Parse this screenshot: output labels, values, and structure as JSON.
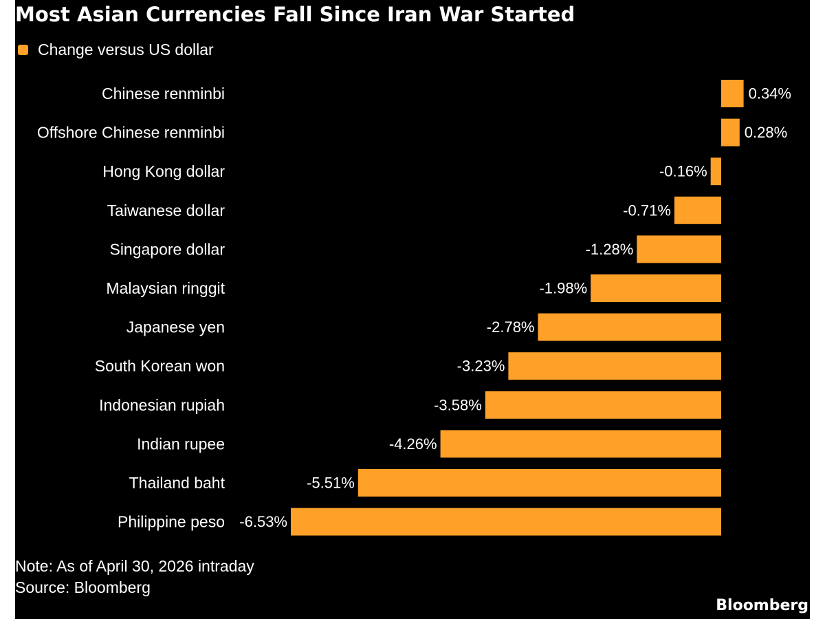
{
  "colors": {
    "background": "#000000",
    "bar": "#FFA028",
    "text": "#FFFFFF"
  },
  "chart_data": {
    "type": "bar",
    "orientation": "horizontal",
    "title": "Most Asian Currencies Fall Since Iran War Started",
    "legend": "Change versus US dollar",
    "categories": [
      "Chinese renminbi",
      "Offshore Chinese renminbi",
      "Hong Kong dollar",
      "Taiwanese dollar",
      "Singapore dollar",
      "Malaysian ringgit",
      "Japanese yen",
      "South Korean won",
      "Indonesian rupiah",
      "Indian rupee",
      "Thailand baht",
      "Philippine peso"
    ],
    "values": [
      0.34,
      0.28,
      -0.16,
      -0.71,
      -1.28,
      -1.98,
      -2.78,
      -3.23,
      -3.58,
      -4.26,
      -5.51,
      -6.53
    ],
    "value_labels": [
      "0.34%",
      "0.28%",
      "-0.16%",
      "-0.71%",
      "-1.28%",
      "-1.98%",
      "-2.78%",
      "-3.23%",
      "-3.58%",
      "-4.26%",
      "-5.51%",
      "-6.53%"
    ],
    "unit": "%",
    "xlim": [
      -6.53,
      0.34
    ],
    "grid": false
  },
  "footer": {
    "note": "Note: As of April 30, 2026 intraday",
    "source": "Source: Bloomberg",
    "brand": "Bloomberg"
  }
}
